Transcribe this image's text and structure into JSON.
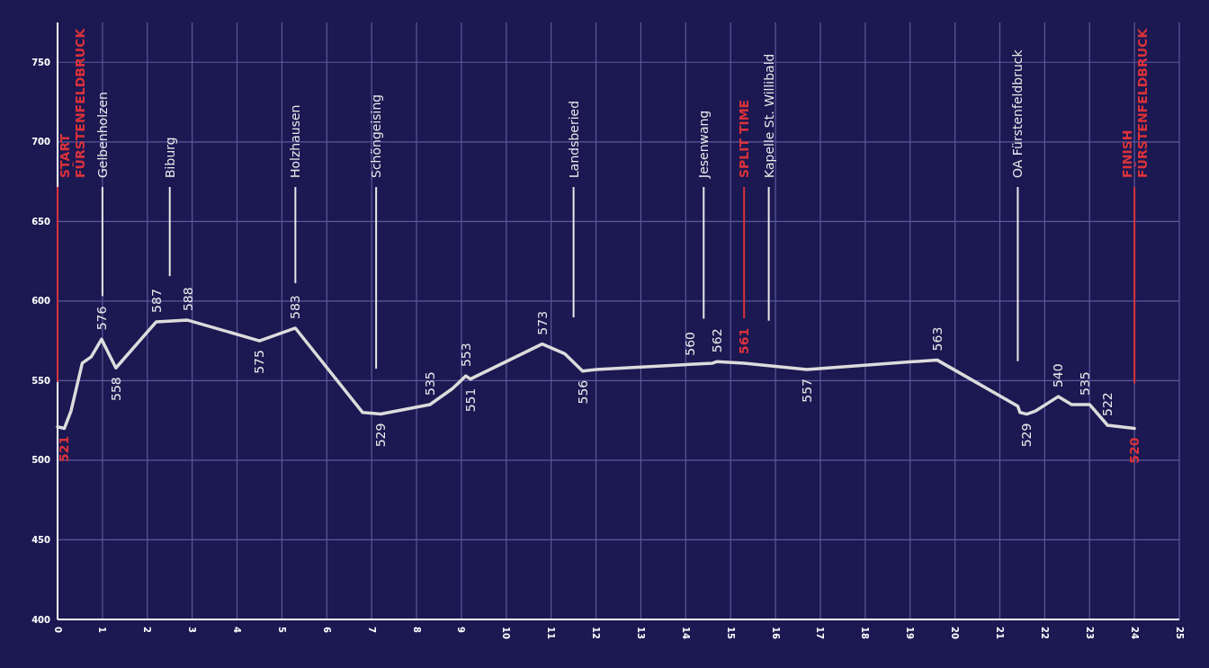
{
  "chart_data": {
    "type": "line",
    "xlim": [
      0,
      25
    ],
    "ylim": [
      400,
      775
    ],
    "xticks": [
      0,
      1,
      2,
      3,
      4,
      5,
      6,
      7,
      8,
      9,
      10,
      11,
      12,
      13,
      14,
      15,
      16,
      17,
      18,
      19,
      20,
      21,
      22,
      23,
      24,
      25
    ],
    "yticks": [
      400,
      450,
      500,
      550,
      600,
      650,
      700,
      750
    ],
    "grid": true,
    "marker": "none",
    "line_style": "solid",
    "x": [
      0,
      0.15,
      0.3,
      0.55,
      0.75,
      0.98,
      1.3,
      2.2,
      2.9,
      4.5,
      5.3,
      6.8,
      7.2,
      8.3,
      8.8,
      9.1,
      9.2,
      10.8,
      11.3,
      11.7,
      12,
      14.6,
      14.7,
      15.3,
      16.7,
      19.6,
      21.4,
      21.45,
      21.6,
      21.8,
      22.3,
      22.6,
      23,
      23.4,
      24
    ],
    "series": [
      {
        "color": "#dcdcdc",
        "values": [
          521,
          520,
          531,
          561,
          565,
          576,
          558,
          587,
          588,
          575,
          583,
          530,
          529,
          535,
          545,
          553,
          551,
          573,
          567,
          556,
          557,
          561,
          562,
          561,
          557,
          563,
          534,
          530,
          529,
          531,
          540,
          535,
          535,
          522,
          520
        ]
      }
    ],
    "ref_lines": [
      {
        "axis": "x",
        "value": 0,
        "label": "START\nFÜRSTENFELDBRUCK",
        "color": "#d9323a"
      },
      {
        "axis": "x",
        "value": 1,
        "label": "Gelbenholzen",
        "color": "#e8e8e8"
      },
      {
        "axis": "x",
        "value": 2.5,
        "label": "Biburg",
        "color": "#e8e8e8"
      },
      {
        "axis": "x",
        "value": 5.3,
        "label": "Holzhausen",
        "color": "#e8e8e8"
      },
      {
        "axis": "x",
        "value": 7.1,
        "label": "Schöngeising",
        "color": "#e8e8e8"
      },
      {
        "axis": "x",
        "value": 11.5,
        "label": "Landsberied",
        "color": "#e8e8e8"
      },
      {
        "axis": "x",
        "value": 14.4,
        "label": "Jesenwang",
        "color": "#e8e8e8"
      },
      {
        "axis": "x",
        "value": 15.3,
        "label": "SPLIT TIME",
        "color": "#d9323a"
      },
      {
        "axis": "x",
        "value": 15.85,
        "label": "Kapelle St. Willibald",
        "color": "#e8e8e8"
      },
      {
        "axis": "x",
        "value": 21.4,
        "label": "OA Fürstenfeldbruck",
        "color": "#e8e8e8"
      },
      {
        "axis": "x",
        "value": 24,
        "label": "FINISH\nFÜRSTENFELDBRUCK",
        "color": "#d9323a"
      }
    ],
    "annotations": [
      {
        "text": "521",
        "x": 0,
        "y": 521
      },
      {
        "text": "576",
        "x": 0.98,
        "y": 576
      },
      {
        "text": "558",
        "x": 1.3,
        "y": 558
      },
      {
        "text": "587",
        "x": 2.2,
        "y": 587
      },
      {
        "text": "588",
        "x": 2.9,
        "y": 588
      },
      {
        "text": "575",
        "x": 4.5,
        "y": 575
      },
      {
        "text": "583",
        "x": 5.3,
        "y": 583
      },
      {
        "text": "529",
        "x": 7.2,
        "y": 529
      },
      {
        "text": "535",
        "x": 8.3,
        "y": 535
      },
      {
        "text": "553",
        "x": 9.1,
        "y": 553
      },
      {
        "text": "551",
        "x": 9.2,
        "y": 551
      },
      {
        "text": "573",
        "x": 10.8,
        "y": 573
      },
      {
        "text": "556",
        "x": 11.7,
        "y": 556
      },
      {
        "text": "560",
        "x": 14.1,
        "y": 560
      },
      {
        "text": "562",
        "x": 14.7,
        "y": 562
      },
      {
        "text": "561",
        "x": 15.3,
        "y": 561
      },
      {
        "text": "557",
        "x": 16.7,
        "y": 557
      },
      {
        "text": "563",
        "x": 19.6,
        "y": 563
      },
      {
        "text": "529",
        "x": 21.6,
        "y": 529
      },
      {
        "text": "540",
        "x": 22.3,
        "y": 540
      },
      {
        "text": "535",
        "x": 22.9,
        "y": 535
      },
      {
        "text": "522",
        "x": 23.4,
        "y": 522
      },
      {
        "text": "520",
        "x": 24,
        "y": 520
      }
    ]
  }
}
